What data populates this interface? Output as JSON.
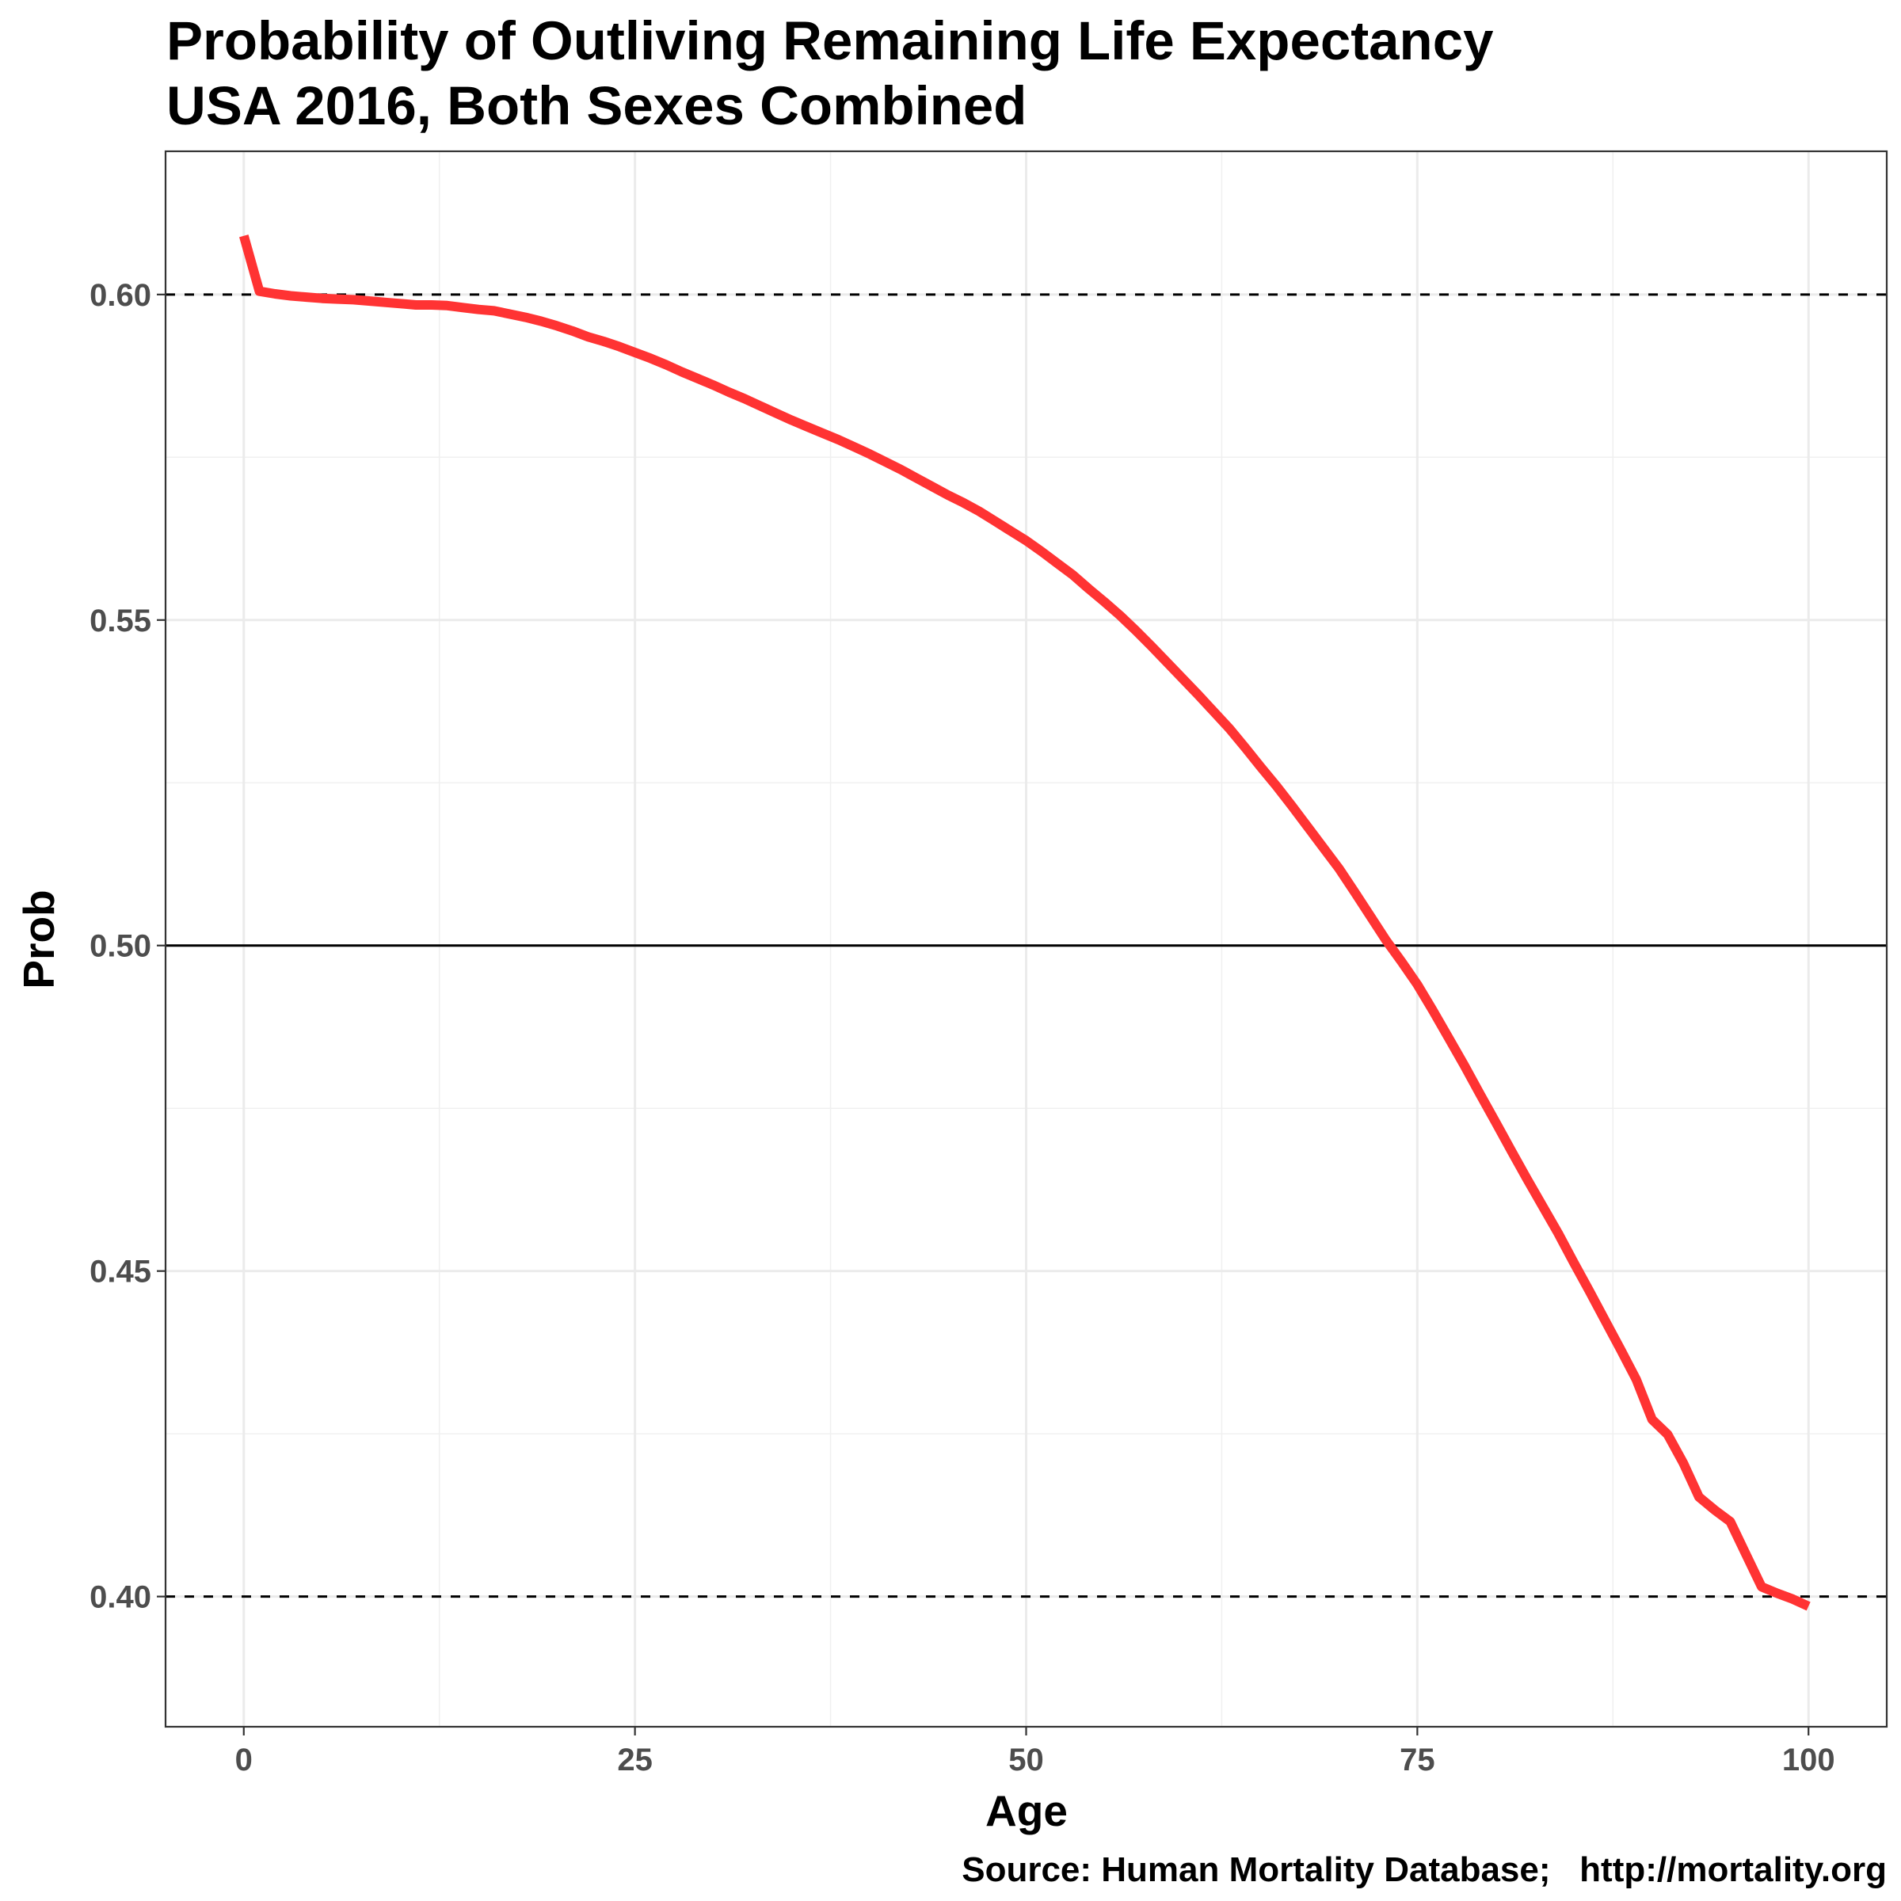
{
  "chart_data": {
    "type": "line",
    "title": "Probability of Outliving Remaining Life Expectancy",
    "subtitle": "USA 2016, Both Sexes Combined",
    "xlabel": "Age",
    "ylabel": "Prob",
    "caption": "Source: Human Mortality Database;   http://mortality.org",
    "xlim": [
      -5,
      105
    ],
    "ylim": [
      0.38,
      0.622
    ],
    "x_ticks": [
      0,
      25,
      50,
      75,
      100
    ],
    "x_tick_labels": [
      "0",
      "25",
      "50",
      "75",
      "100"
    ],
    "y_ticks": [
      0.4,
      0.45,
      0.5,
      0.55,
      0.6
    ],
    "y_tick_labels": [
      "0.40",
      "0.45",
      "0.50",
      "0.55",
      "0.60"
    ],
    "grid": true,
    "reference_lines": [
      {
        "y": 0.6,
        "style": "dashed"
      },
      {
        "y": 0.5,
        "style": "solid"
      },
      {
        "y": 0.4,
        "style": "dashed"
      }
    ],
    "series": [
      {
        "color": "#ff3333",
        "x": [
          0,
          1,
          2,
          3,
          4,
          5,
          6,
          7,
          8,
          9,
          10,
          11,
          12,
          13,
          14,
          15,
          16,
          17,
          18,
          19,
          20,
          21,
          22,
          23,
          24,
          25,
          26,
          27,
          28,
          29,
          30,
          31,
          32,
          33,
          34,
          35,
          36,
          37,
          38,
          39,
          40,
          41,
          42,
          43,
          44,
          45,
          46,
          47,
          48,
          49,
          50,
          51,
          52,
          53,
          54,
          55,
          56,
          57,
          58,
          59,
          60,
          61,
          62,
          63,
          64,
          65,
          66,
          67,
          68,
          69,
          70,
          71,
          72,
          73,
          74,
          75,
          76,
          77,
          78,
          79,
          80,
          81,
          82,
          83,
          84,
          85,
          86,
          87,
          88,
          89,
          90,
          91,
          92,
          93,
          94,
          95,
          96,
          97,
          98,
          99,
          100
        ],
        "y": [
          0.609,
          0.6005,
          0.6001,
          0.5998,
          0.5996,
          0.5994,
          0.5993,
          0.5992,
          0.599,
          0.5988,
          0.5986,
          0.5984,
          0.5984,
          0.5983,
          0.598,
          0.5977,
          0.5975,
          0.597,
          0.5965,
          0.5959,
          0.5952,
          0.5944,
          0.5935,
          0.5928,
          0.592,
          0.5911,
          0.5902,
          0.5892,
          0.5881,
          0.5871,
          0.5861,
          0.585,
          0.584,
          0.5829,
          0.5818,
          0.5807,
          0.5797,
          0.5787,
          0.5777,
          0.5766,
          0.5755,
          0.5743,
          0.5731,
          0.5718,
          0.5705,
          0.5692,
          0.568,
          0.5667,
          0.5652,
          0.5637,
          0.5622,
          0.5605,
          0.5587,
          0.5569,
          0.5548,
          0.5528,
          0.5507,
          0.5484,
          0.546,
          0.5435,
          0.541,
          0.5385,
          0.5359,
          0.5333,
          0.5304,
          0.5274,
          0.5245,
          0.5214,
          0.5182,
          0.515,
          0.5118,
          0.5082,
          0.5045,
          0.5008,
          0.4975,
          0.494,
          0.49,
          0.4858,
          0.4816,
          0.4772,
          0.4729,
          0.4685,
          0.4642,
          0.46,
          0.4558,
          0.4513,
          0.4469,
          0.4424,
          0.4379,
          0.4333,
          0.4272,
          0.4249,
          0.4205,
          0.4153,
          0.4133,
          0.4115,
          0.4065,
          0.4015,
          0.4005,
          0.3996,
          0.3985
        ]
      }
    ]
  }
}
